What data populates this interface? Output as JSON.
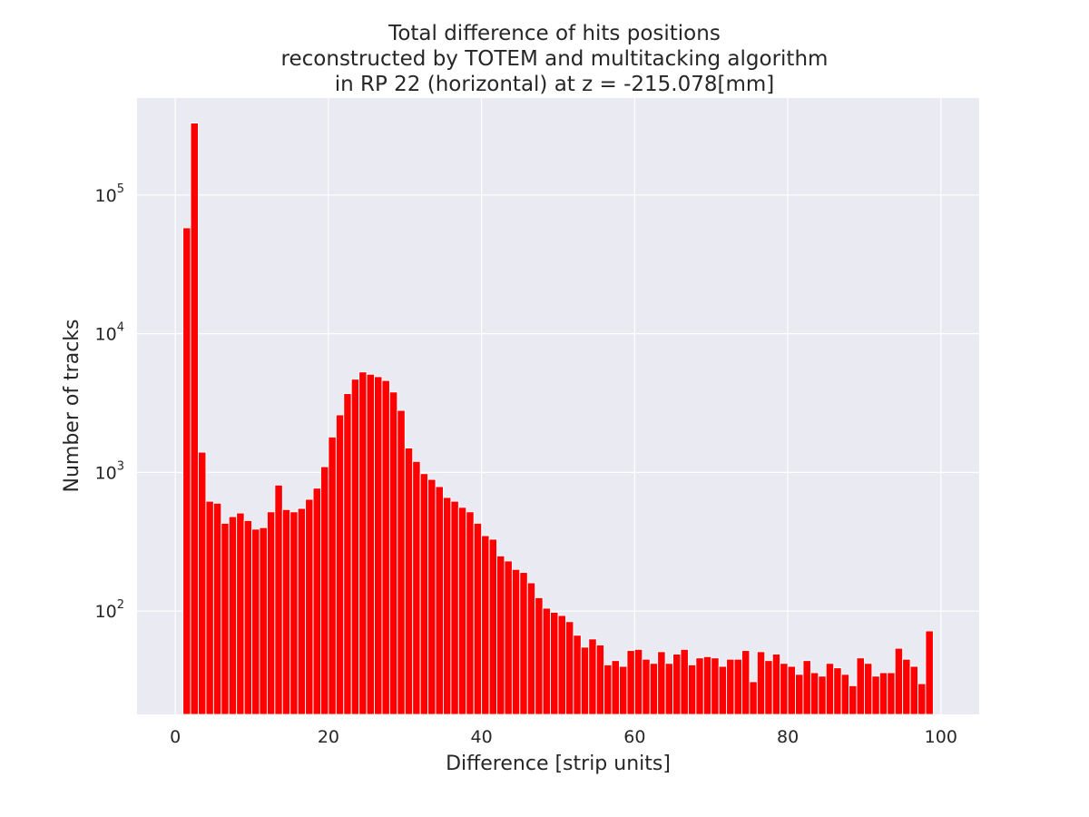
{
  "chart_data": {
    "type": "bar",
    "title_lines": [
      "Total difference of hits positions",
      "reconstructed by TOTEM and multitacking algorithm",
      "in RP 22 (horizontal) at z = -215.078[mm]"
    ],
    "xlabel": "Difference [strip units]",
    "ylabel": "Number of tracks",
    "x_scale": "linear",
    "y_scale": "log",
    "xlim": [
      -5,
      105
    ],
    "ylim": [
      18,
      500000
    ],
    "xticks": [
      0,
      20,
      40,
      60,
      80,
      100
    ],
    "xtick_labels": [
      "0",
      "20",
      "40",
      "60",
      "80",
      "100"
    ],
    "yticks": [
      100,
      1000,
      10000,
      100000
    ],
    "ytick_labels": [
      {
        "base": "10",
        "exp": "2"
      },
      {
        "base": "10",
        "exp": "3"
      },
      {
        "base": "10",
        "exp": "4"
      },
      {
        "base": "10",
        "exp": "5"
      }
    ],
    "grid": true,
    "bar_color": "#ff0000",
    "background_color": "#eaeaf2",
    "bin_start": 1,
    "bin_width": 1,
    "counts": [
      58000,
      330000,
      1400,
      620,
      600,
      430,
      480,
      510,
      450,
      390,
      400,
      520,
      810,
      540,
      520,
      550,
      640,
      770,
      1100,
      1800,
      2600,
      3700,
      4700,
      5300,
      5100,
      4900,
      4600,
      3800,
      2800,
      1500,
      1200,
      980,
      890,
      790,
      660,
      620,
      560,
      520,
      430,
      350,
      330,
      250,
      230,
      200,
      190,
      160,
      125,
      105,
      98,
      93,
      84,
      67,
      55,
      63,
      57,
      41,
      44,
      40,
      52,
      53,
      45,
      42,
      51,
      42,
      49,
      53,
      41,
      46,
      47,
      46,
      40,
      45,
      45,
      52,
      31,
      51,
      44,
      49,
      42,
      40,
      35,
      44,
      36,
      34,
      42,
      39,
      35,
      29,
      46,
      42,
      34,
      36,
      36,
      54,
      45,
      40,
      30,
      72
    ]
  }
}
